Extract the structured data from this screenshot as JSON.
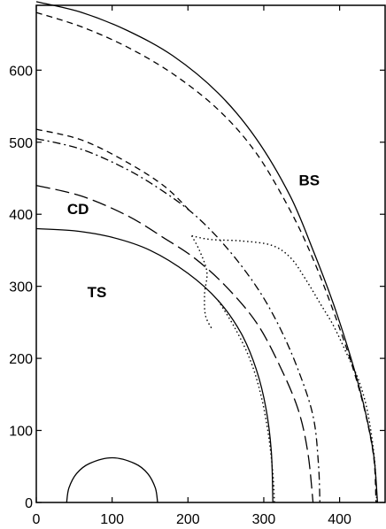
{
  "chart_data": {
    "type": "line",
    "title": "",
    "xlabel": "",
    "ylabel": "",
    "xlim": [
      0,
      460
    ],
    "ylim": [
      0,
      690
    ],
    "x_ticks": [
      0,
      100,
      200,
      300,
      400
    ],
    "y_ticks": [
      0,
      100,
      200,
      300,
      400,
      500,
      600
    ],
    "grid": false,
    "annotations": [
      {
        "text": "BS",
        "x": 360,
        "y": 440
      },
      {
        "text": "CD",
        "x": 55,
        "y": 400
      },
      {
        "text": "TS",
        "x": 80,
        "y": 285
      }
    ],
    "series": [
      {
        "style": "solid",
        "points": [
          [
            0,
            380
          ],
          [
            50,
            377
          ],
          [
            100,
            368
          ],
          [
            150,
            350
          ],
          [
            200,
            318
          ],
          [
            240,
            280
          ],
          [
            270,
            235
          ],
          [
            290,
            185
          ],
          [
            303,
            130
          ],
          [
            310,
            70
          ],
          [
            312,
            0
          ]
        ]
      },
      {
        "style": "dotted",
        "points": [
          [
            240,
            280
          ],
          [
            262,
            242
          ],
          [
            282,
            198
          ],
          [
            296,
            150
          ],
          [
            306,
            95
          ],
          [
            312,
            40
          ],
          [
            314,
            0
          ]
        ]
      },
      {
        "style": "longdash",
        "points": [
          [
            0,
            440
          ],
          [
            60,
            425
          ],
          [
            120,
            398
          ],
          [
            170,
            366
          ],
          [
            210,
            338
          ],
          [
            250,
            300
          ],
          [
            290,
            250
          ],
          [
            320,
            192
          ],
          [
            345,
            130
          ],
          [
            358,
            70
          ],
          [
            365,
            0
          ]
        ]
      },
      {
        "style": "dashdot",
        "points": [
          [
            0,
            505
          ],
          [
            60,
            490
          ],
          [
            120,
            462
          ],
          [
            170,
            430
          ],
          [
            210,
            398
          ],
          [
            250,
            355
          ],
          [
            290,
            300
          ],
          [
            320,
            245
          ],
          [
            345,
            185
          ],
          [
            365,
            120
          ],
          [
            372,
            55
          ],
          [
            374,
            0
          ]
        ]
      },
      {
        "style": "dashed",
        "points": [
          [
            0,
            518
          ],
          [
            60,
            503
          ],
          [
            120,
            472
          ],
          [
            170,
            438
          ],
          [
            205,
            402
          ]
        ]
      },
      {
        "style": "solid",
        "points": [
          [
            0,
            695
          ],
          [
            60,
            680
          ],
          [
            120,
            655
          ],
          [
            180,
            620
          ],
          [
            240,
            568
          ],
          [
            290,
            505
          ],
          [
            335,
            425
          ],
          [
            365,
            350
          ],
          [
            392,
            275
          ],
          [
            415,
            200
          ],
          [
            433,
            130
          ],
          [
            445,
            65
          ],
          [
            450,
            0
          ]
        ]
      },
      {
        "style": "dashed",
        "points": [
          [
            0,
            680
          ],
          [
            60,
            660
          ],
          [
            120,
            632
          ],
          [
            180,
            595
          ],
          [
            240,
            545
          ],
          [
            290,
            485
          ],
          [
            335,
            405
          ],
          [
            365,
            338
          ],
          [
            392,
            265
          ],
          [
            415,
            195
          ],
          [
            433,
            128
          ],
          [
            445,
            62
          ],
          [
            448,
            0
          ]
        ]
      },
      {
        "style": "dotted",
        "points": [
          [
            205,
            370
          ],
          [
            230,
            365
          ],
          [
            270,
            363
          ],
          [
            310,
            357
          ],
          [
            335,
            340
          ],
          [
            355,
            310
          ],
          [
            375,
            275
          ],
          [
            392,
            245
          ],
          [
            410,
            205
          ],
          [
            425,
            170
          ],
          [
            437,
            125
          ],
          [
            446,
            60
          ],
          [
            449,
            0
          ]
        ]
      },
      {
        "style": "dotted",
        "points": [
          [
            205,
            370
          ],
          [
            215,
            350
          ],
          [
            225,
            320
          ],
          [
            222,
            290
          ],
          [
            223,
            260
          ],
          [
            232,
            240
          ]
        ]
      },
      {
        "style": "solid",
        "points": [
          [
            40,
            0
          ],
          [
            43,
            20
          ],
          [
            53,
            40
          ],
          [
            70,
            54
          ],
          [
            100,
            62
          ],
          [
            130,
            54
          ],
          [
            147,
            40
          ],
          [
            157,
            20
          ],
          [
            160,
            0
          ]
        ]
      }
    ]
  }
}
